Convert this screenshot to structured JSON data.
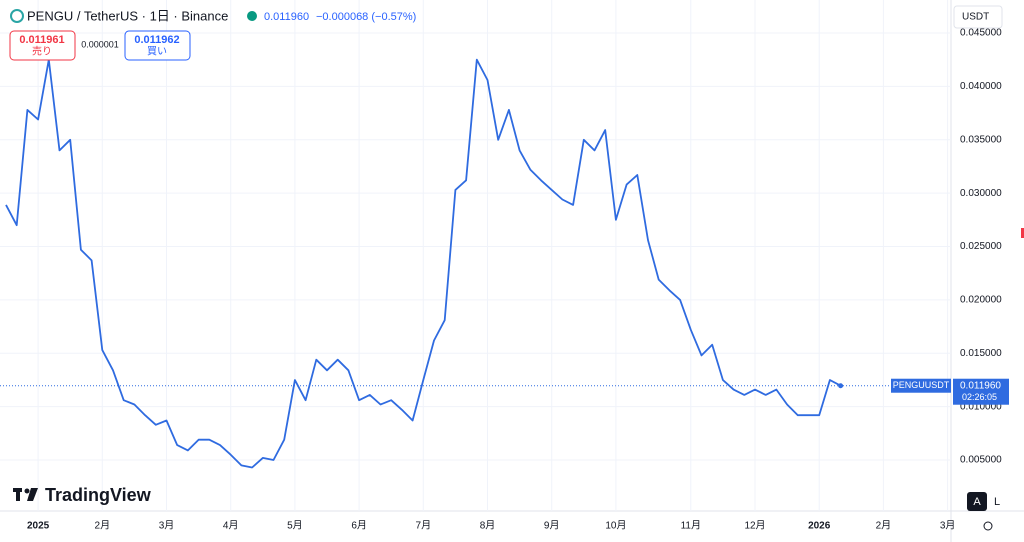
{
  "header": {
    "symbol": "PENGU / TetherUS · 1日 · Binance",
    "price": "0.011960",
    "change": "−0.000068 (−0.57%)",
    "currency": "USDT"
  },
  "trade": {
    "sell_price": "0.011961",
    "sell_label": "売り",
    "spread": "0.000001",
    "buy_price": "0.011962",
    "buy_label": "買い"
  },
  "price_tag": {
    "price": "0.011960",
    "countdown": "02:26:05"
  },
  "branding": "TradingView",
  "controls": {
    "auto": "A",
    "log": "L"
  },
  "chart_data": {
    "type": "line",
    "grid": true,
    "categories": [
      null,
      null,
      null,
      "2025",
      null,
      null,
      null,
      null,
      null,
      "2月",
      null,
      null,
      null,
      null,
      null,
      "3月",
      null,
      null,
      null,
      null,
      null,
      "4月",
      null,
      null,
      null,
      null,
      null,
      "5月",
      null,
      null,
      null,
      null,
      null,
      "6月",
      null,
      null,
      null,
      null,
      null,
      "7月",
      null,
      null,
      null,
      null,
      null,
      "8月",
      null,
      null,
      null,
      null,
      null,
      "9月",
      null,
      null,
      null,
      null,
      null,
      "10月",
      null,
      null,
      null,
      null,
      null,
      null,
      "11月",
      null,
      null,
      null,
      null,
      null,
      "12月",
      null,
      null,
      null,
      null,
      null,
      "2026",
      null,
      null,
      null,
      null,
      null,
      "2月",
      null,
      null,
      null,
      null,
      null,
      "3月"
    ],
    "series": [
      {
        "name": "PENGUUSDT",
        "color": "#2f6be0",
        "values": [
          0.0289,
          0.027,
          0.0378,
          0.0369,
          0.0425,
          0.034,
          0.035,
          0.0247,
          0.0237,
          0.0153,
          0.0134,
          0.0106,
          0.0102,
          0.0092,
          0.0083,
          0.0087,
          0.0064,
          0.0059,
          0.0069,
          0.0069,
          0.0064,
          0.0055,
          0.0045,
          0.0043,
          0.0052,
          0.005,
          0.0069,
          0.0125,
          0.0106,
          0.0144,
          0.0134,
          0.0144,
          0.0134,
          0.0106,
          0.0111,
          0.0102,
          0.0106,
          0.0097,
          0.0087,
          0.0125,
          0.0162,
          0.0181,
          0.0303,
          0.0312,
          0.0425,
          0.0406,
          0.035,
          0.0378,
          0.034,
          0.0322,
          0.0312,
          0.0303,
          0.0294,
          0.0289,
          0.035,
          0.034,
          0.0359,
          0.0275,
          0.0308,
          0.0317,
          0.0256,
          0.0219,
          0.0209,
          0.02,
          0.0172,
          0.0148,
          0.0158,
          0.0125,
          0.0116,
          0.0111,
          0.0116,
          0.0111,
          0.0116,
          0.0102,
          0.0092,
          0.0092,
          0.0092,
          0.0125,
          0.01196,
          null,
          null,
          null,
          null,
          null,
          null,
          null,
          null,
          null,
          null
        ]
      }
    ],
    "ylim": [
      0,
      0.045
    ],
    "yticks": [
      {
        "value": 0.005,
        "label": "0.005000"
      },
      {
        "value": 0.01,
        "label": "0.010000"
      },
      {
        "value": 0.015,
        "label": "0.015000"
      },
      {
        "value": 0.02,
        "label": "0.020000"
      },
      {
        "value": 0.025,
        "label": "0.025000"
      },
      {
        "value": 0.03,
        "label": "0.030000"
      },
      {
        "value": 0.035,
        "label": "0.035000"
      },
      {
        "value": 0.04,
        "label": "0.040000"
      },
      {
        "value": 0.045,
        "label": "0.045000"
      }
    ]
  }
}
